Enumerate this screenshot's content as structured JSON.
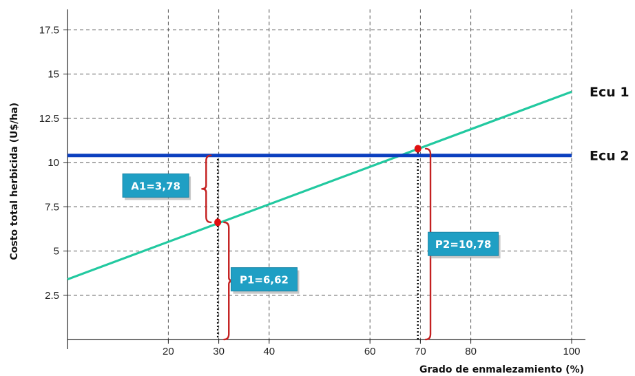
{
  "chart_data": {
    "type": "line",
    "xlabel": "Grado de enmalezamiento (%)",
    "ylabel": "Costo total herbicida  (U$/ha)",
    "xlim": [
      0,
      100
    ],
    "ylim": [
      0,
      18.5
    ],
    "x_ticks": [
      {
        "value": 20,
        "label": "20"
      },
      {
        "value": 30,
        "label": "30"
      },
      {
        "value": 40,
        "label": "40"
      },
      {
        "value": 60,
        "label": "60"
      },
      {
        "value": 70,
        "label": "70"
      },
      {
        "value": 80,
        "label": "80"
      },
      {
        "value": 100,
        "label": "100"
      }
    ],
    "x_grid": [
      20,
      30,
      40,
      60,
      70,
      80,
      100
    ],
    "y_ticks": [
      {
        "value": 2.5,
        "label": "2.5"
      },
      {
        "value": 5,
        "label": "5"
      },
      {
        "value": 7.5,
        "label": "7.5"
      },
      {
        "value": 10,
        "label": "10"
      },
      {
        "value": 12.5,
        "label": "12.5"
      },
      {
        "value": 15,
        "label": "15"
      },
      {
        "value": 17.5,
        "label": "17.5"
      }
    ],
    "grid": true,
    "series": [
      {
        "name": "Ecu 1",
        "color": "#22c9a0",
        "x": [
          0,
          100
        ],
        "y": [
          3.4,
          14.0
        ]
      },
      {
        "name": "Ecu 2",
        "color": "#0b3fbf",
        "x": [
          0,
          100
        ],
        "y": [
          10.4,
          10.4
        ]
      }
    ],
    "points": [
      {
        "x": 29.8,
        "y": 6.62,
        "color": "#e01010"
      },
      {
        "x": 69.5,
        "y": 10.78,
        "color": "#e01010"
      }
    ],
    "annotations": [
      {
        "label": "A1=3,78",
        "x_from": 29.8,
        "y_from": 6.62,
        "y_to": 10.4,
        "bracket_x": 27.5,
        "bracket_side": "left",
        "box_x": 17.5,
        "box_y": 8.7
      },
      {
        "label": "P1=6,62",
        "x_from": 29.8,
        "y_from": 0,
        "y_to": 6.62,
        "bracket_x": 32.0,
        "bracket_side": "right",
        "box_x": 39.0,
        "box_y": 3.4
      },
      {
        "label": "P2=10,78",
        "x_from": 69.5,
        "y_from": 0,
        "y_to": 10.78,
        "bracket_x": 72.0,
        "bracket_side": "right",
        "box_x": 78.5,
        "box_y": 5.4
      }
    ],
    "colors": {
      "callout_fill": "#1f9fc4",
      "bracket": "#c42020",
      "grid": "#555555"
    }
  }
}
